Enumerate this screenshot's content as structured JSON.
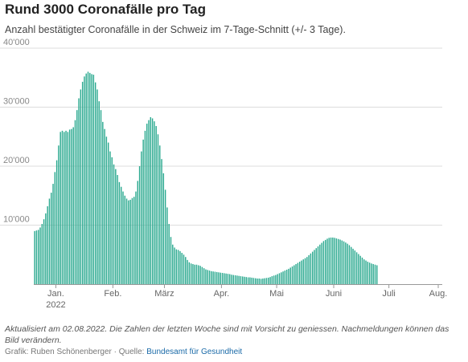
{
  "title": "Rund 3000 Coronafälle pro Tag",
  "subtitle": "Anzahl bestätigter Coronafälle in der Schweiz im 7-Tage-Schnitt (+/- 3 Tage).",
  "note": "Aktualisiert am 02.08.2022. Die Zahlen der letzten Woche sind mit Vorsicht zu geniessen. Nachmeldungen können das Bild verändern.",
  "credit": {
    "prefix": "Grafik: Ruben Schönenberger · Quelle: ",
    "source": "Bundesamt für Gesundheit"
  },
  "colors": {
    "bars": "#2aa98f",
    "grid": "#dddddd",
    "axis": "#999999"
  },
  "chart_data": {
    "type": "bar",
    "title": "Rund 3000 Coronafälle pro Tag",
    "xlabel": "",
    "ylabel": "",
    "ylim": [
      0,
      40000
    ],
    "yticks": [
      10000,
      20000,
      30000,
      40000
    ],
    "ytick_labels": [
      "10'000",
      "20'000",
      "30'000",
      "40'000"
    ],
    "grid": true,
    "x_start": "2021-12-20",
    "x_end": "2022-07-29",
    "xticks": [
      {
        "date": "2022-01-01",
        "label": "Jan.",
        "sublabel": "2022"
      },
      {
        "date": "2022-02-01",
        "label": "Feb.",
        "sublabel": ""
      },
      {
        "date": "2022-03-01",
        "label": "März",
        "sublabel": ""
      },
      {
        "date": "2022-04-01",
        "label": "Apr.",
        "sublabel": ""
      },
      {
        "date": "2022-05-01",
        "label": "Mai",
        "sublabel": ""
      },
      {
        "date": "2022-06-01",
        "label": "Juni",
        "sublabel": ""
      },
      {
        "date": "2022-07-01",
        "label": "Juli",
        "sublabel": ""
      },
      {
        "date": "2022-08-01",
        "label": "Aug.",
        "sublabel": ""
      }
    ],
    "series": [
      {
        "values": [
          9000,
          9100,
          9200,
          9600,
          10200,
          11000,
          12000,
          13200,
          14500,
          15500,
          17000,
          19000,
          21000,
          23500,
          25800,
          26000,
          25800,
          26000,
          25800,
          26200,
          26300,
          26600,
          27800,
          29500,
          31500,
          33000,
          34300,
          35200,
          35700,
          36000,
          35800,
          35600,
          35500,
          34200,
          33000,
          31000,
          29500,
          27500,
          26300,
          25000,
          24000,
          22500,
          21500,
          20300,
          19500,
          18500,
          17300,
          16500,
          15700,
          15000,
          14500,
          14200,
          14300,
          14600,
          14800,
          15700,
          17500,
          20000,
          22500,
          24500,
          26000,
          27200,
          27800,
          28300,
          28100,
          27600,
          26800,
          25400,
          23500,
          21200,
          18800,
          16000,
          13000,
          10200,
          8000,
          6700,
          6200,
          5900,
          5800,
          5600,
          5300,
          5000,
          4600,
          4100,
          3700,
          3500,
          3400,
          3300,
          3300,
          3200,
          3100,
          2900,
          2700,
          2500,
          2400,
          2300,
          2200,
          2150,
          2100,
          2050,
          2000,
          1950,
          1900,
          1850,
          1800,
          1750,
          1700,
          1600,
          1550,
          1500,
          1450,
          1400,
          1350,
          1300,
          1250,
          1200,
          1150,
          1150,
          1100,
          1050,
          1000,
          950,
          950,
          900,
          950,
          1000,
          1050,
          1100,
          1200,
          1350,
          1450,
          1550,
          1700,
          1850,
          2000,
          2150,
          2300,
          2450,
          2600,
          2800,
          3000,
          3200,
          3400,
          3600,
          3800,
          4000,
          4200,
          4400,
          4600,
          4900,
          5200,
          5500,
          5800,
          6100,
          6400,
          6700,
          7000,
          7300,
          7500,
          7700,
          7850,
          7900,
          7900,
          7850,
          7750,
          7650,
          7550,
          7400,
          7250,
          7050,
          6850,
          6600,
          6300,
          6000,
          5700,
          5400,
          5100,
          4800,
          4500,
          4200,
          4000,
          3800,
          3650,
          3500,
          3400,
          3300,
          3200
        ]
      }
    ]
  }
}
